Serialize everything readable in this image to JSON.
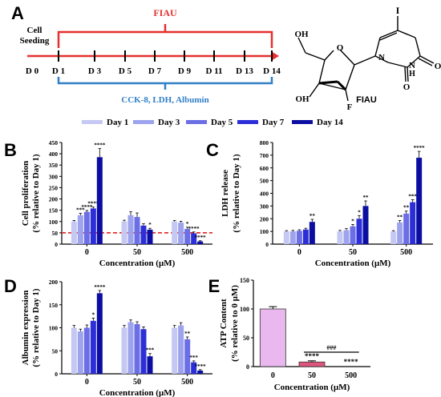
{
  "colors": {
    "day1": "#c5c8f2",
    "day3": "#9da3ec",
    "day5": "#6b6ee4",
    "day7": "#2c2fd8",
    "day14": "#0c0ea2",
    "red": "#e53030",
    "blue": "#2f7fc6",
    "atp_ctrl": "#eab8ef",
    "atp_50": "#e0557e"
  },
  "legend": [
    "Day 1",
    "Day 3",
    "Day 5",
    "Day 7",
    "Day 14"
  ],
  "timeline": {
    "panel_label": "A",
    "seeding_label": "Cell\nSeeding",
    "fiau_label": "FIAU",
    "days": [
      "D 0",
      "D 1",
      "D 3",
      "D 5",
      "D 7",
      "D 9",
      "D 11",
      "D 13",
      "D 14"
    ],
    "assay_label": "CCK-8, LDH, Albumin",
    "structure_caption": "FIAU",
    "atoms": {
      "I": "I",
      "O1": "O",
      "O2": "O",
      "N1": "N",
      "N2": "N",
      "H": "H",
      "F": "F",
      "OH1": "OH",
      "OH2": "OH"
    }
  },
  "chart_data": [
    {
      "id": "B",
      "type": "bar",
      "panel_label": "B",
      "ylabel_line1": "Cell proliferation",
      "ylabel_line2": "(% relative to Day 1)",
      "xlabel": "Concentration (μM)",
      "categories": [
        "0",
        "50",
        "500"
      ],
      "ylim": [
        0,
        450
      ],
      "yticks": [
        0,
        50,
        100,
        150,
        200,
        250,
        300,
        350,
        400,
        450
      ],
      "reference_line": 50,
      "series": [
        {
          "name": "Day 1",
          "values": [
            100,
            100,
            100
          ],
          "errors": [
            5,
            6,
            5
          ],
          "sig": [
            "",
            "",
            ""
          ]
        },
        {
          "name": "Day 3",
          "values": [
            128,
            128,
            95
          ],
          "errors": [
            8,
            15,
            6
          ],
          "sig": [
            "***",
            "",
            ""
          ]
        },
        {
          "name": "Day 5",
          "values": [
            143,
            120,
            67
          ],
          "errors": [
            6,
            18,
            8
          ],
          "sig": [
            "****",
            "",
            "*"
          ]
        },
        {
          "name": "Day 7",
          "values": [
            158,
            82,
            48
          ],
          "errors": [
            6,
            8,
            6
          ],
          "sig": [
            "****",
            "",
            "****"
          ]
        },
        {
          "name": "Day 14",
          "values": [
            385,
            64,
            12
          ],
          "errors": [
            38,
            6,
            3
          ],
          "sig": [
            "****",
            "*",
            "****"
          ]
        }
      ]
    },
    {
      "id": "C",
      "type": "bar",
      "panel_label": "C",
      "ylabel_line1": "LDH release",
      "ylabel_line2": "(% relative to Day 1)",
      "xlabel": "Concentration (μM)",
      "categories": [
        "0",
        "50",
        "500"
      ],
      "ylim": [
        0,
        800
      ],
      "yticks": [
        0,
        100,
        200,
        300,
        400,
        500,
        600,
        700,
        800
      ],
      "series": [
        {
          "name": "Day 1",
          "values": [
            100,
            100,
            100
          ],
          "errors": [
            6,
            8,
            6
          ],
          "sig": [
            "",
            "",
            ""
          ]
        },
        {
          "name": "Day 3",
          "values": [
            100,
            110,
            170
          ],
          "errors": [
            8,
            12,
            15
          ],
          "sig": [
            "",
            "",
            "**"
          ]
        },
        {
          "name": "Day 5",
          "values": [
            105,
            140,
            240
          ],
          "errors": [
            8,
            15,
            20
          ],
          "sig": [
            "",
            "*",
            "**"
          ]
        },
        {
          "name": "Day 7",
          "values": [
            115,
            200,
            330
          ],
          "errors": [
            10,
            25,
            20
          ],
          "sig": [
            "",
            "*",
            "***"
          ]
        },
        {
          "name": "Day 14",
          "values": [
            175,
            300,
            680
          ],
          "errors": [
            20,
            40,
            50
          ],
          "sig": [
            "**",
            "**",
            "****"
          ]
        }
      ]
    },
    {
      "id": "D",
      "type": "bar",
      "panel_label": "D",
      "ylabel_line1": "Albumin expression",
      "ylabel_line2": "(% relative to Day 1)",
      "xlabel": "Concentration (μM)",
      "categories": [
        "0",
        "50",
        "500"
      ],
      "ylim": [
        0,
        200
      ],
      "yticks": [
        0,
        50,
        100,
        150,
        200
      ],
      "series": [
        {
          "name": "Day 1",
          "values": [
            100,
            100,
            100
          ],
          "errors": [
            5,
            5,
            5
          ],
          "sig": [
            "",
            "",
            ""
          ]
        },
        {
          "name": "Day 3",
          "values": [
            92,
            112,
            105
          ],
          "errors": [
            5,
            5,
            6
          ],
          "sig": [
            "",
            "",
            ""
          ]
        },
        {
          "name": "Day 5",
          "values": [
            100,
            108,
            75
          ],
          "errors": [
            6,
            5,
            5
          ],
          "sig": [
            "",
            "",
            "**"
          ]
        },
        {
          "name": "Day 7",
          "values": [
            115,
            97,
            25
          ],
          "errors": [
            6,
            5,
            3
          ],
          "sig": [
            "*",
            "",
            "***"
          ]
        },
        {
          "name": "Day 14",
          "values": [
            175,
            38,
            7
          ],
          "errors": [
            6,
            6,
            2
          ],
          "sig": [
            "****",
            "***",
            "****"
          ]
        }
      ]
    },
    {
      "id": "E",
      "type": "bar",
      "panel_label": "E",
      "ylabel_line1": "ATP Content",
      "ylabel_line2": "(% relative to 0 μM)",
      "xlabel": "Concentration (μM)",
      "categories": [
        "0",
        "50",
        "500"
      ],
      "ylim": [
        0,
        150
      ],
      "yticks": [
        0,
        50,
        100,
        150
      ],
      "values": [
        100,
        8,
        0
      ],
      "errors": [
        4,
        2,
        0
      ],
      "sig": [
        "",
        "****",
        "****"
      ],
      "bracket_label": "###"
    }
  ]
}
